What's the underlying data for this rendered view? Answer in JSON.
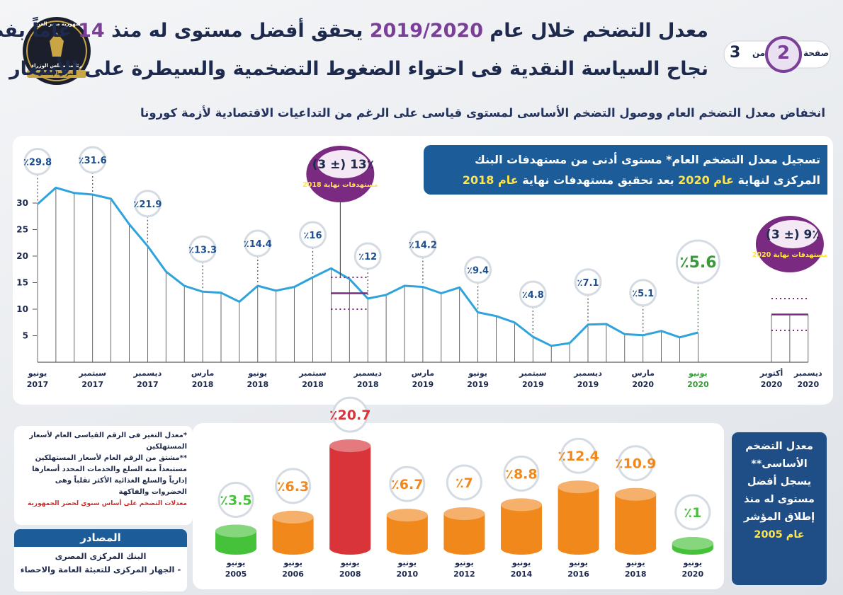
{
  "header": {
    "logo": [
      "جمهورية مصر العربية",
      "رئاسة مجلس الوزراء",
      "المركز الإعلامي"
    ],
    "title_line1": [
      "معدل التضخم خلال عام ",
      "2019/2020",
      " يحقق أفضل مستوى له منذ ",
      "14",
      " عاماً بفضل"
    ],
    "title_line2": "نجاح السياسة النقدية فى احتواء الضغوط التضخمية والسيطرة على الأسعار",
    "page": {
      "word": "صفحة",
      "number": "2",
      "of": "من",
      "total": "3"
    }
  },
  "subtitle": "انخفاض معدل التضخم العام ووصول التضخم الأساسى لمستوى قياسى على الرغم من التداعيات الاقتصادية لأزمة كورونا",
  "headline_box": [
    "تسجيل معدل التضخم العام* مستوى أدنى من مستهدفات البنك المركزى لنهاية ",
    "عام 2020",
    " بعد تحقيق مستهدفات نهاية ",
    "عام 2018"
  ],
  "core_box": [
    "معدل التضخم الأساسى** يسجل أفضل مستوى له منذ إطلاق المؤشر",
    "عام 2005"
  ],
  "notes": [
    "*معدل التغير فى الرقم القياسى العام لأسعار المستهلكين",
    "**مشتق من الرقم العام لأسعار المستهلكين مستبعداً منه السلع والخدمات المحدد أسعارها إدارياً والسلع الغذائية الأكثر تقلباً وهى الخضروات والفاكهة",
    "معدلات التضخم على أساس سنوى لحضر الجمهورية"
  ],
  "sources": {
    "title": "المصادر",
    "items": [
      "البنك المركزى المصرى",
      "- الجهاز المركزى للتعبئة العامة والاحصاء"
    ]
  },
  "chart_data": [
    {
      "type": "line",
      "color": "#2ea3dc",
      "categories": [
        "يونيو 2017",
        null,
        null,
        "سبتمبر 2017",
        null,
        null,
        "ديسمبر 2017",
        null,
        null,
        "مارس 2018",
        null,
        null,
        "يونيو 2018",
        null,
        null,
        "سبتمبر 2018",
        null,
        null,
        "ديسمبر 2018",
        null,
        null,
        "مارس 2019",
        null,
        null,
        "يونيو 2019",
        null,
        null,
        "سبتمبر 2019",
        null,
        null,
        "ديسمبر 2019",
        null,
        null,
        "مارس 2020",
        null,
        null,
        "يونيو 2020",
        null,
        null,
        null,
        "أكتوبر 2020",
        null,
        "ديسمبر 2020"
      ],
      "values": [
        29.8,
        32.9,
        31.9,
        31.6,
        30.8,
        26.0,
        21.9,
        17.1,
        14.4,
        13.3,
        13.1,
        11.4,
        14.4,
        13.5,
        14.2,
        16.0,
        17.7,
        15.7,
        12.0,
        12.7,
        14.4,
        14.2,
        13.0,
        14.1,
        9.4,
        8.7,
        7.5,
        4.8,
        3.1,
        3.6,
        7.1,
        7.2,
        5.3,
        5.1,
        5.9,
        4.7,
        5.6,
        null,
        null,
        null,
        null,
        null,
        null
      ],
      "value_labels": [
        "٪29.8",
        null,
        null,
        "٪31.6",
        null,
        null,
        "٪21.9",
        null,
        null,
        "٪13.3",
        null,
        null,
        "٪14.4",
        null,
        null,
        "٪16",
        null,
        null,
        "٪12",
        null,
        null,
        "٪14.2",
        null,
        null,
        "٪9.4",
        null,
        null,
        "٪4.8",
        null,
        null,
        "٪7.1",
        null,
        null,
        "٪5.1",
        null,
        null,
        "٪5.6",
        null,
        null,
        null,
        null,
        null,
        null
      ],
      "ylim": [
        0,
        34
      ],
      "yticks": [
        5,
        10,
        15,
        20,
        25,
        30
      ],
      "targets": [
        {
          "value": 13,
          "tolerance": 3,
          "label": "13٪ (± 3)",
          "caption": "مستهدفات نهاية 2018",
          "color": "#7b2a82"
        },
        {
          "value": 9,
          "tolerance": 3,
          "label": "9٪ (± 3)",
          "caption": "مستهدفات نهاية 2020",
          "color": "#7b2a82"
        }
      ]
    },
    {
      "type": "bar",
      "categories": [
        "يونيو 2005",
        "يونيو 2006",
        "يونيو 2008",
        "يونيو 2010",
        "يونيو 2012",
        "يونيو 2014",
        "يونيو 2016",
        "يونيو 2018",
        "يونيو 2020"
      ],
      "values": [
        3.5,
        6.3,
        20.7,
        6.7,
        7,
        8.8,
        12.4,
        10.9,
        1
      ],
      "value_labels": [
        "٪3.5",
        "٪6.3",
        "٪20.7",
        "٪6.7",
        "٪7",
        "٪8.8",
        "٪12.4",
        "٪10.9",
        "٪1"
      ],
      "colors": [
        "#45c13a",
        "#f0881c",
        "#d8343a",
        "#f0881c",
        "#f0881c",
        "#f0881c",
        "#f0881c",
        "#f0881c",
        "#45c13a"
      ]
    }
  ]
}
